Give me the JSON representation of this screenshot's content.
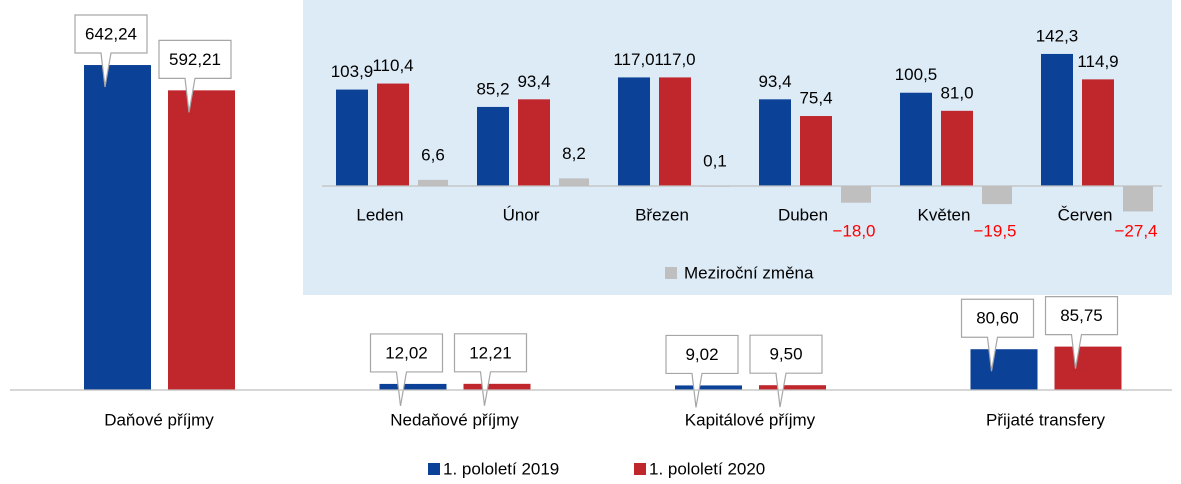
{
  "chart_data": [
    {
      "type": "bar",
      "categories": [
        "Daňové příjmy",
        "Nedaňové příjmy",
        "Kapitálové příjmy",
        "Přijaté transfery"
      ],
      "series": [
        {
          "name": "1. pololetí 2019",
          "color": "#0b4196",
          "values": [
            642.24,
            12.02,
            9.02,
            80.6
          ],
          "value_labels": [
            "642,24",
            "12,02",
            "9,02",
            "80,60"
          ]
        },
        {
          "name": "1. pololetí 2020",
          "color": "#c0272d",
          "values": [
            592.21,
            12.21,
            9.5,
            85.75
          ],
          "value_labels": [
            "592,21",
            "12,21",
            "9,50",
            "85,75"
          ]
        }
      ],
      "legend": "bottom"
    },
    {
      "type": "bar",
      "categories": [
        "Leden",
        "Únor",
        "Březen",
        "Duben",
        "Květen",
        "Červen"
      ],
      "series": [
        {
          "color": "#0b4196",
          "values": [
            103.9,
            85.2,
            117.0,
            93.4,
            100.5,
            142.3
          ],
          "value_labels": [
            "103,9",
            "85,2",
            "117,0",
            "93,4",
            "100,5",
            "142,3"
          ]
        },
        {
          "color": "#c0272d",
          "values": [
            110.4,
            93.4,
            117.0,
            75.4,
            81.0,
            114.9
          ],
          "value_labels": [
            "110,4",
            "93,4",
            "117,0",
            "75,4",
            "81,0",
            "114,9"
          ]
        },
        {
          "name": "Meziroční změna",
          "color": "#bfbfbf",
          "values": [
            6.6,
            8.2,
            0.1,
            -18.0,
            -19.5,
            -27.4
          ],
          "value_labels": [
            "6,6",
            "8,2",
            "0,1",
            "−18,0",
            "−19,5",
            "−27,4"
          ]
        }
      ],
      "legend": "bottom",
      "background": "#ddebf7"
    }
  ]
}
